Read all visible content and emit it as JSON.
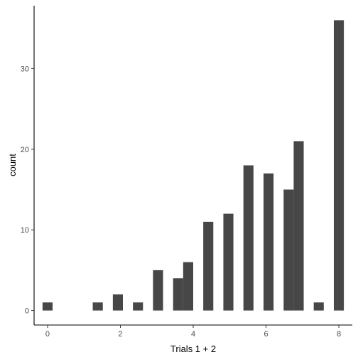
{
  "chart_data": {
    "type": "bar",
    "title": "",
    "xlabel": "Trials 1 + 2",
    "ylabel": "count",
    "xlim": [
      -0.37,
      8.37
    ],
    "ylim": [
      -1.8,
      37.8
    ],
    "x_ticks": [
      0,
      2,
      4,
      6,
      8
    ],
    "x_tick_labels": [
      "0",
      "2",
      "4",
      "6",
      "8"
    ],
    "y_ticks": [
      0,
      10,
      20,
      30
    ],
    "y_tick_labels": [
      "0",
      "10",
      "20",
      "30"
    ],
    "bin_width": 0.2759,
    "bins": [
      {
        "x": 0.0,
        "count": 1
      },
      {
        "x": 1.379,
        "count": 1
      },
      {
        "x": 1.931,
        "count": 2
      },
      {
        "x": 2.483,
        "count": 1
      },
      {
        "x": 3.034,
        "count": 5
      },
      {
        "x": 3.586,
        "count": 4
      },
      {
        "x": 3.862,
        "count": 6
      },
      {
        "x": 4.414,
        "count": 11
      },
      {
        "x": 4.966,
        "count": 12
      },
      {
        "x": 5.517,
        "count": 18
      },
      {
        "x": 6.069,
        "count": 17
      },
      {
        "x": 6.621,
        "count": 15
      },
      {
        "x": 6.897,
        "count": 21
      },
      {
        "x": 7.448,
        "count": 1
      },
      {
        "x": 8.0,
        "count": 36
      }
    ],
    "bar_color": "#474747",
    "grid": false,
    "legend": "none"
  }
}
